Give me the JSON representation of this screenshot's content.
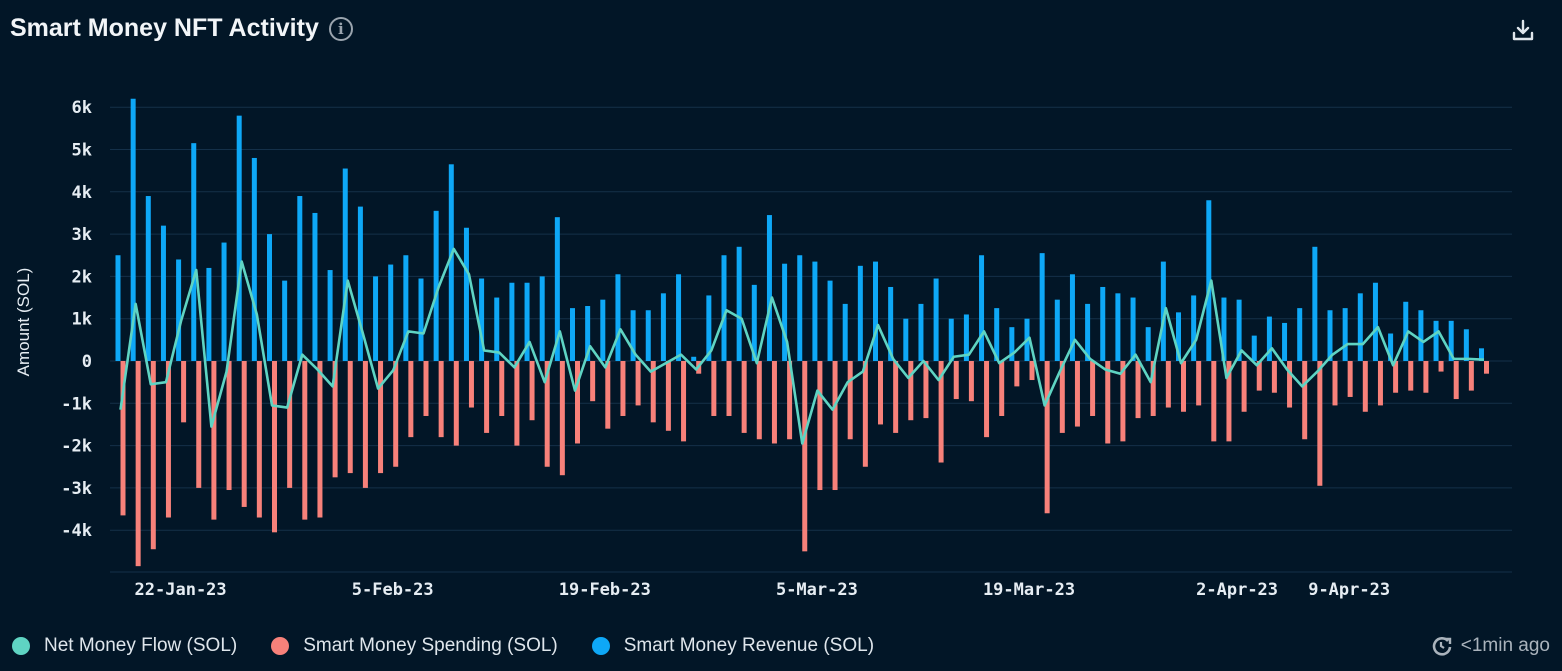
{
  "header": {
    "title": "Smart Money NFT Activity",
    "info_icon": "info-circle-icon",
    "download_icon": "download-icon"
  },
  "footer": {
    "updated_icon": "clock-refresh-icon",
    "updated_text": "<1min ago"
  },
  "colors": {
    "net": "#5fd4c3",
    "spending": "#f7817a",
    "revenue": "#0ea8f7",
    "background": "#021627",
    "grid": "#143049"
  },
  "chart_data": {
    "type": "bar",
    "title": "Smart Money NFT Activity",
    "ylabel": "Amount (SOL)",
    "xlabel": "",
    "ylim": [
      -4800,
      6300
    ],
    "grid": true,
    "legend_placement": "bottom-left",
    "y_ticks": [
      {
        "v": 6000,
        "label": "6k"
      },
      {
        "v": 5000,
        "label": "5k"
      },
      {
        "v": 4000,
        "label": "4k"
      },
      {
        "v": 3000,
        "label": "3k"
      },
      {
        "v": 2000,
        "label": "2k"
      },
      {
        "v": 1000,
        "label": "1k"
      },
      {
        "v": 0,
        "label": "0"
      },
      {
        "v": -1000,
        "label": "-1k"
      },
      {
        "v": -2000,
        "label": "-2k"
      },
      {
        "v": -3000,
        "label": "-3k"
      },
      {
        "v": -4000,
        "label": "-4k"
      }
    ],
    "x_ticks": [
      "22-Jan-23",
      "5-Feb-23",
      "19-Feb-23",
      "5-Mar-23",
      "19-Mar-23",
      "2-Apr-23",
      "9-Apr-23"
    ],
    "categories": [
      "18-Jan-23",
      "19-Jan-23",
      "20-Jan-23",
      "21-Jan-23",
      "22-Jan-23",
      "23-Jan-23",
      "24-Jan-23",
      "25-Jan-23",
      "26-Jan-23",
      "27-Jan-23",
      "28-Jan-23",
      "29-Jan-23",
      "30-Jan-23",
      "31-Jan-23",
      "1-Feb-23",
      "2-Feb-23",
      "3-Feb-23",
      "4-Feb-23",
      "5-Feb-23",
      "6-Feb-23",
      "7-Feb-23",
      "8-Feb-23",
      "9-Feb-23",
      "10-Feb-23",
      "11-Feb-23",
      "12-Feb-23",
      "13-Feb-23",
      "14-Feb-23",
      "15-Feb-23",
      "16-Feb-23",
      "17-Feb-23",
      "18-Feb-23",
      "19-Feb-23",
      "20-Feb-23",
      "21-Feb-23",
      "22-Feb-23",
      "23-Feb-23",
      "24-Feb-23",
      "25-Feb-23",
      "26-Feb-23",
      "27-Feb-23",
      "28-Feb-23",
      "1-Mar-23",
      "2-Mar-23",
      "3-Mar-23",
      "4-Mar-23",
      "5-Mar-23",
      "6-Mar-23",
      "7-Mar-23",
      "8-Mar-23",
      "9-Mar-23",
      "10-Mar-23",
      "11-Mar-23",
      "12-Mar-23",
      "13-Mar-23",
      "14-Mar-23",
      "15-Mar-23",
      "16-Mar-23",
      "17-Mar-23",
      "18-Mar-23",
      "19-Mar-23",
      "20-Mar-23",
      "21-Mar-23",
      "22-Mar-23",
      "23-Mar-23",
      "24-Mar-23",
      "25-Mar-23",
      "26-Mar-23",
      "27-Mar-23",
      "28-Mar-23",
      "29-Mar-23",
      "30-Mar-23",
      "31-Mar-23",
      "1-Apr-23",
      "2-Apr-23",
      "3-Apr-23",
      "4-Apr-23",
      "5-Apr-23",
      "6-Apr-23",
      "7-Apr-23",
      "8-Apr-23",
      "9-Apr-23",
      "10-Apr-23",
      "11-Apr-23",
      "12-Apr-23",
      "13-Apr-23",
      "14-Apr-23",
      "15-Apr-23",
      "16-Apr-23",
      "17-Apr-23",
      "18-Apr-23"
    ],
    "series": [
      {
        "name": "Net Money Flow (SOL)",
        "type": "line",
        "values": [
          -1150,
          1350,
          -550,
          -500,
          950,
          2150,
          -1550,
          -250,
          2350,
          1100,
          -1050,
          -1100,
          150,
          -200,
          -600,
          1900,
          650,
          -650,
          -220,
          700,
          650,
          1750,
          2650,
          2050,
          250,
          200,
          -150,
          450,
          -500,
          700,
          -700,
          350,
          -150,
          750,
          150,
          -250,
          -50,
          150,
          -200,
          250,
          1200,
          1000,
          -50,
          1500,
          450,
          -1950,
          -700,
          -1150,
          -500,
          -250,
          850,
          50,
          -400,
          0,
          -450,
          100,
          150,
          700,
          -50,
          200,
          550,
          -1050,
          -250,
          500,
          50,
          -200,
          -300,
          150,
          -500,
          1250,
          -50,
          500,
          1900,
          -400,
          250,
          -100,
          300,
          -200,
          -600,
          -250,
          150,
          400,
          400,
          800,
          -100,
          700,
          450,
          700,
          50,
          50,
          30
        ]
      },
      {
        "name": "Smart Money Spending (SOL)",
        "type": "bar",
        "values": [
          -3650,
          -4850,
          -4450,
          -3700,
          -1450,
          -3000,
          -3750,
          -3050,
          -3450,
          -3700,
          -4050,
          -3000,
          -3750,
          -3700,
          -2750,
          -2650,
          -3000,
          -2650,
          -2500,
          -1800,
          -1300,
          -1800,
          -2000,
          -1100,
          -1700,
          -1300,
          -2000,
          -1400,
          -2500,
          -2700,
          -1950,
          -950,
          -1600,
          -1300,
          -1050,
          -1450,
          -1650,
          -1900,
          -300,
          -1300,
          -1300,
          -1700,
          -1850,
          -1950,
          -1850,
          -4500,
          -3050,
          -3050,
          -1850,
          -2500,
          -1500,
          -1700,
          -1400,
          -1350,
          -2400,
          -900,
          -950,
          -1800,
          -1300,
          -600,
          -450,
          -3600,
          -1700,
          -1550,
          -1300,
          -1950,
          -1900,
          -1350,
          -1300,
          -1100,
          -1200,
          -1050,
          -1900,
          -1900,
          -1200,
          -700,
          -750,
          -1100,
          -1850,
          -2950,
          -1050,
          -850,
          -1200,
          -1050,
          -750,
          -700,
          -750,
          -250,
          -900,
          -700,
          -300
        ]
      },
      {
        "name": "Smart Money Revenue (SOL)",
        "type": "bar",
        "values": [
          2500,
          6200,
          3900,
          3200,
          2400,
          5150,
          2200,
          2800,
          5800,
          4800,
          3000,
          1900,
          3900,
          3500,
          2150,
          4550,
          3650,
          2000,
          2280,
          2500,
          1950,
          3550,
          4650,
          3150,
          1950,
          1500,
          1850,
          1850,
          2000,
          3400,
          1250,
          1300,
          1450,
          2050,
          1200,
          1200,
          1600,
          2050,
          100,
          1550,
          2500,
          2700,
          1800,
          3450,
          2300,
          2500,
          2350,
          1900,
          1350,
          2250,
          2350,
          1750,
          1000,
          1350,
          1950,
          1000,
          1100,
          2500,
          1250,
          800,
          1000,
          2550,
          1450,
          2050,
          1350,
          1750,
          1600,
          1500,
          800,
          2350,
          1150,
          1550,
          3800,
          1500,
          1450,
          600,
          1050,
          900,
          1250,
          2700,
          1200,
          1250,
          1600,
          1850,
          650,
          1400,
          1200,
          950,
          950,
          750,
          300
        ]
      }
    ]
  }
}
